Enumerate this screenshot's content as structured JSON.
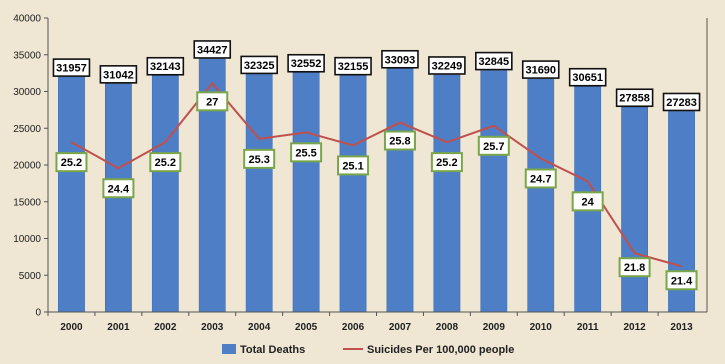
{
  "chart_data": {
    "type": "bar",
    "title": "",
    "xlabel": "",
    "ylabel": "",
    "ylim": [
      0,
      40000
    ],
    "y_ticks": [
      "0",
      "5000",
      "10000",
      "15000",
      "20000",
      "25000",
      "30000",
      "35000",
      "40000"
    ],
    "categories": [
      "2000",
      "2001",
      "2002",
      "2003",
      "2004",
      "2005",
      "2006",
      "2007",
      "2008",
      "2009",
      "2010",
      "2011",
      "2012",
      "2013"
    ],
    "series": [
      {
        "name": "Total Deaths",
        "type": "bar",
        "color": "#4e7fc6",
        "values": [
          31957,
          31042,
          32143,
          34427,
          32325,
          32552,
          32155,
          33093,
          32249,
          32845,
          31690,
          30651,
          27858,
          27283
        ]
      },
      {
        "name": "Suicides Per 100,000 people",
        "type": "line",
        "color": "#c0504d",
        "values": [
          25.2,
          24.4,
          25.2,
          27,
          25.3,
          25.5,
          25.1,
          25.8,
          25.2,
          25.7,
          24.7,
          24,
          21.8,
          21.4
        ]
      }
    ],
    "legend_position": "bottom",
    "grid": false
  }
}
